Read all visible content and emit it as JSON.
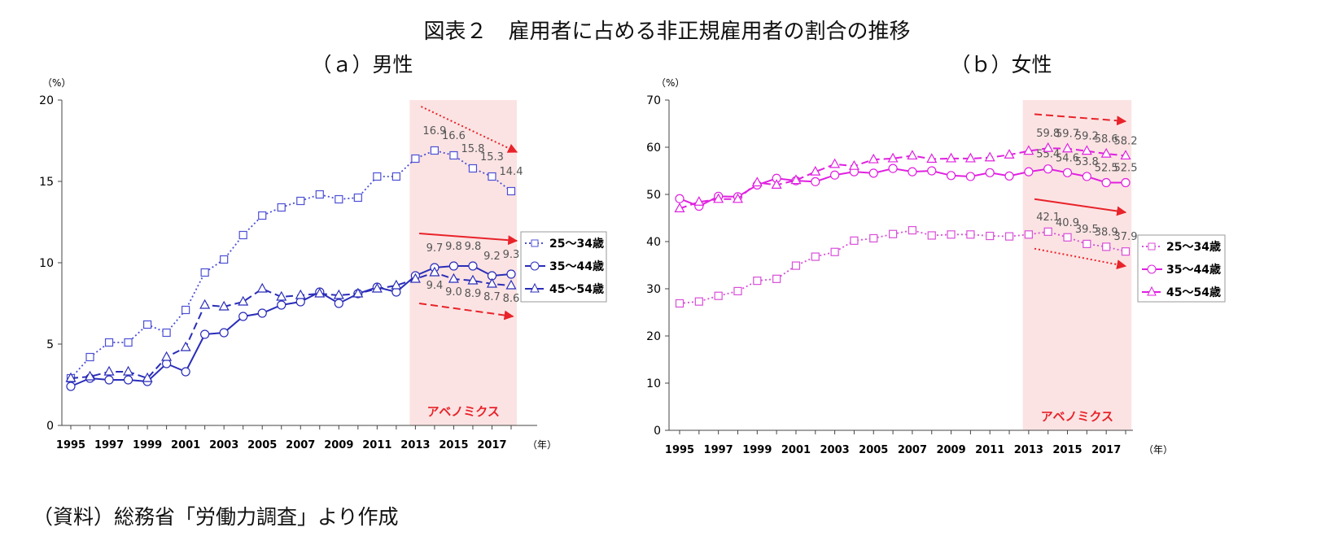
{
  "figure_title": "図表２　雇用者に占める非正規雇用者の割合の推移",
  "source_note": "（資料）総務省「労働力調査」より作成",
  "chart_data": [
    {
      "type": "line",
      "title": "（ａ）男性",
      "ylabel": "（%）",
      "xlabel": "（年）",
      "ylim": [
        0,
        20
      ],
      "yticks": [
        0,
        5,
        10,
        15,
        20
      ],
      "x": [
        1995,
        1996,
        1997,
        1998,
        1999,
        2000,
        2001,
        2002,
        2003,
        2004,
        2005,
        2006,
        2007,
        2008,
        2009,
        2010,
        2011,
        2012,
        2013,
        2014,
        2015,
        2016,
        2017,
        2018
      ],
      "xtick_labels": [
        "1995",
        "1997",
        "1999",
        "2001",
        "2003",
        "2005",
        "2007",
        "2009",
        "2011",
        "2013",
        "2015",
        "2017"
      ],
      "shade": {
        "from": 2012.7,
        "to": 2018.3,
        "label": "アベノミクス",
        "color": "#fbe3e3"
      },
      "series": [
        {
          "name": "25～34歳",
          "color": "#4b4fd4",
          "dash": "dotted",
          "marker": "square",
          "values": [
            2.9,
            4.2,
            5.1,
            5.1,
            6.2,
            5.7,
            7.1,
            9.4,
            10.2,
            11.7,
            12.9,
            13.4,
            13.8,
            14.2,
            13.9,
            14.0,
            15.3,
            15.3,
            16.4,
            16.9,
            16.6,
            15.8,
            15.3,
            14.4
          ],
          "labels": {
            "2014": "16.9",
            "2015": "16.6",
            "2016": "15.8",
            "2017": "15.3",
            "2018": "14.4"
          }
        },
        {
          "name": "35～44歳",
          "color": "#2a2db8",
          "dash": "solid",
          "marker": "circle",
          "values": [
            2.4,
            2.9,
            2.8,
            2.8,
            2.7,
            3.8,
            3.3,
            5.6,
            5.7,
            6.7,
            6.9,
            7.4,
            7.6,
            8.2,
            7.5,
            8.1,
            8.5,
            8.2,
            9.2,
            9.7,
            9.8,
            9.8,
            9.2,
            9.3
          ],
          "labels": {
            "2014": "9.7",
            "2015": "9.8",
            "2016": "9.8",
            "2017": "9.2",
            "2018": "9.3"
          }
        },
        {
          "name": "45～54歳",
          "color": "#2a2db8",
          "dash": "dashed",
          "marker": "triangle",
          "values": [
            2.9,
            3.0,
            3.3,
            3.3,
            2.9,
            4.2,
            4.8,
            7.4,
            7.3,
            7.6,
            8.4,
            7.9,
            8.0,
            8.1,
            8.0,
            8.1,
            8.4,
            8.6,
            9.0,
            9.4,
            9.0,
            8.9,
            8.7,
            8.6
          ],
          "labels": {
            "2014": "9.4",
            "2015": "9.0",
            "2016": "8.9",
            "2017": "8.7",
            "2018": "8.6"
          }
        }
      ],
      "trend_arrows": [
        {
          "dash": "dotted",
          "from": [
            2013.3,
            19.6
          ],
          "to": [
            2018.3,
            16.8
          ]
        },
        {
          "dash": "solid",
          "from": [
            2013.2,
            11.8
          ],
          "to": [
            2018.3,
            11.35
          ]
        },
        {
          "dash": "dashed",
          "from": [
            2013.2,
            7.5
          ],
          "to": [
            2018.1,
            6.7
          ]
        }
      ]
    },
    {
      "type": "line",
      "title": "（ｂ）女性",
      "ylabel": "（%）",
      "xlabel": "（年）",
      "ylim": [
        0,
        70
      ],
      "yticks": [
        0,
        10,
        20,
        30,
        40,
        50,
        60,
        70
      ],
      "x": [
        1995,
        1996,
        1997,
        1998,
        1999,
        2000,
        2001,
        2002,
        2003,
        2004,
        2005,
        2006,
        2007,
        2008,
        2009,
        2010,
        2011,
        2012,
        2013,
        2014,
        2015,
        2016,
        2017,
        2018
      ],
      "xtick_labels": [
        "1995",
        "1997",
        "1999",
        "2001",
        "2003",
        "2005",
        "2007",
        "2009",
        "2011",
        "2013",
        "2015",
        "2017"
      ],
      "shade": {
        "from": 2012.7,
        "to": 2018.3,
        "label": "アベノミクス",
        "color": "#fbe3e3"
      },
      "series": [
        {
          "name": "25～34歳",
          "color": "#d84fd8",
          "dash": "dotted",
          "marker": "square",
          "values": [
            26.9,
            27.3,
            28.5,
            29.5,
            31.7,
            32.1,
            34.9,
            36.8,
            37.8,
            40.2,
            40.7,
            41.6,
            42.4,
            41.3,
            41.5,
            41.5,
            41.2,
            41.1,
            41.5,
            42.1,
            40.9,
            39.5,
            38.9,
            37.9
          ],
          "labels": {
            "2014": "42.1",
            "2015": "40.9",
            "2016": "39.5",
            "2017": "38.9",
            "2018": "37.9"
          }
        },
        {
          "name": "35～44歳",
          "color": "#e020e0",
          "dash": "solid",
          "marker": "circle",
          "values": [
            49.1,
            47.5,
            49.6,
            49.5,
            52.0,
            53.4,
            52.9,
            52.7,
            54.1,
            54.8,
            54.5,
            55.5,
            54.8,
            55.0,
            54.0,
            53.8,
            54.6,
            53.9,
            54.8,
            55.4,
            54.6,
            53.8,
            52.5,
            52.5
          ],
          "labels": {
            "2014": "55.4",
            "2015": "54.6",
            "2016": "53.8",
            "2017": "52.5",
            "2018": "52.5"
          }
        },
        {
          "name": "45～54歳",
          "color": "#e020e0",
          "dash": "dashed",
          "marker": "triangle",
          "values": [
            47.0,
            48.4,
            49.0,
            49.0,
            52.5,
            52.0,
            53.0,
            54.8,
            56.4,
            56.0,
            57.4,
            57.6,
            58.2,
            57.5,
            57.6,
            57.6,
            57.8,
            58.4,
            59.2,
            59.8,
            59.7,
            59.2,
            58.6,
            58.2
          ],
          "labels": {
            "2014": "59.8",
            "2015": "59.7",
            "2016": "59.2",
            "2017": "58.6",
            "2018": "58.2"
          }
        }
      ],
      "trend_arrows": [
        {
          "dash": "dashed",
          "from": [
            2013.3,
            67.0
          ],
          "to": [
            2018.0,
            65.5
          ]
        },
        {
          "dash": "solid",
          "from": [
            2013.3,
            49.0
          ],
          "to": [
            2018.0,
            46.2
          ]
        },
        {
          "dash": "dotted",
          "from": [
            2013.3,
            38.5
          ],
          "to": [
            2018.0,
            34.8
          ]
        }
      ]
    }
  ]
}
